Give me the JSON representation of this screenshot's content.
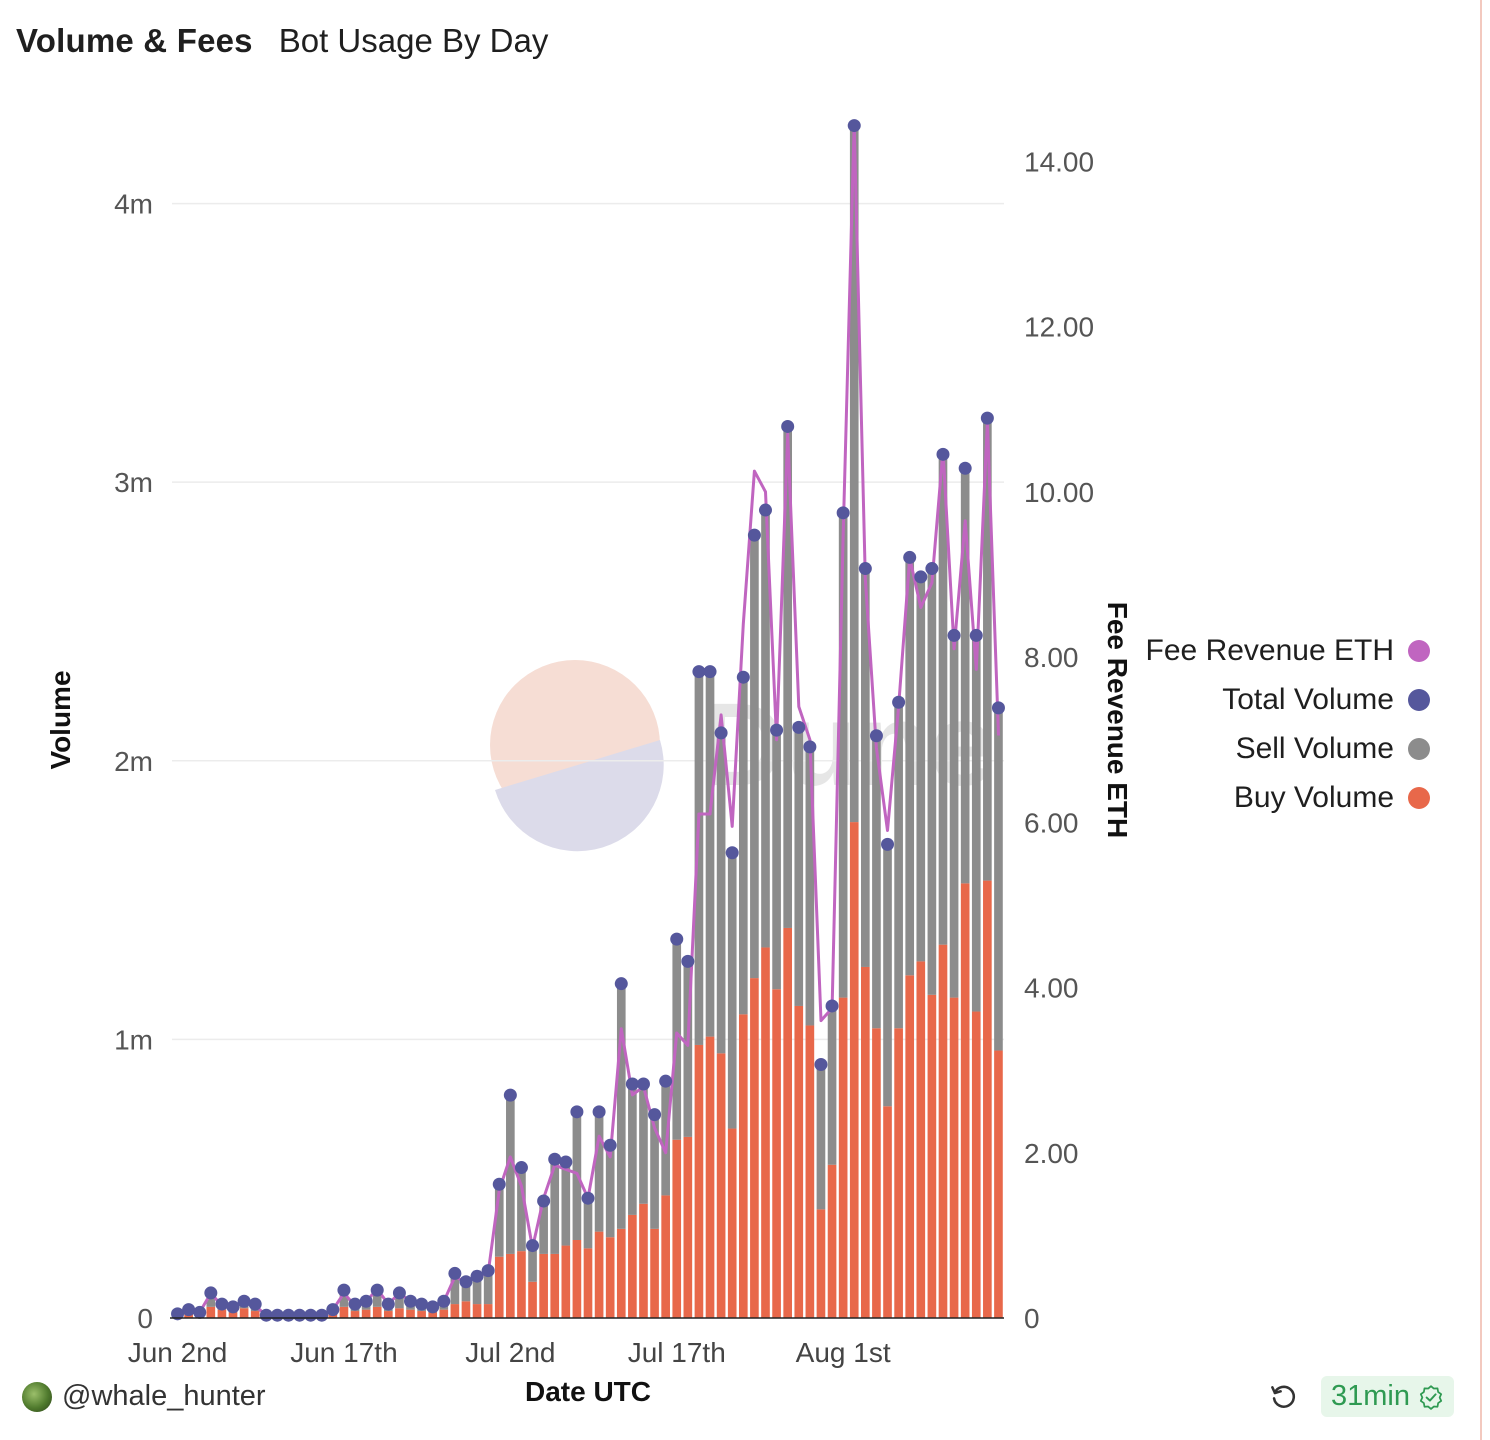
{
  "header": {
    "title": "Volume & Fees",
    "subtitle": "Bot Usage By Day"
  },
  "footer": {
    "user": "@whale_hunter",
    "refresh_time": "31min"
  },
  "colors": {
    "buy": "#e8684a",
    "sell": "#8c8c8c",
    "total": "#55579c",
    "fee": "#c065c0",
    "watermark": "Dune"
  },
  "chart_data": {
    "type": "bar",
    "stacked": true,
    "xlabel": "Date UTC",
    "ylabel": "Volume",
    "y2label": "Fee Revenue ETH",
    "x_ticks": [
      "Jun 2nd",
      "Jun 17th",
      "Jul 2nd",
      "Jul 17th",
      "Aug 1st"
    ],
    "x_tick_indices": [
      0,
      15,
      30,
      45,
      60
    ],
    "ylim": [
      0,
      4300000
    ],
    "y_ticks": [
      0,
      1000000,
      2000000,
      3000000,
      4000000
    ],
    "y_tick_labels": [
      "0",
      "1m",
      "2m",
      "3m",
      "4m"
    ],
    "y2lim": [
      0,
      14.5
    ],
    "y2_ticks": [
      0,
      2,
      4,
      6,
      8,
      10,
      12,
      14
    ],
    "y2_tick_labels": [
      "0",
      "2.00",
      "4.00",
      "6.00",
      "8.00",
      "10.00",
      "12.00",
      "14.00"
    ],
    "legend": {
      "position": "right",
      "entries": [
        "Fee Revenue ETH",
        "Total Volume",
        "Sell Volume",
        "Buy Volume"
      ]
    },
    "series": [
      {
        "name": "Buy Volume",
        "values": [
          10000,
          20000,
          15000,
          40000,
          30000,
          20000,
          35000,
          25000,
          5000,
          5000,
          5000,
          5000,
          5000,
          5000,
          20000,
          40000,
          25000,
          30000,
          40000,
          25000,
          35000,
          30000,
          25000,
          20000,
          30000,
          50000,
          60000,
          50000,
          50000,
          220000,
          230000,
          240000,
          130000,
          230000,
          230000,
          260000,
          280000,
          250000,
          310000,
          290000,
          320000,
          370000,
          410000,
          320000,
          440000,
          640000,
          650000,
          980000,
          1010000,
          950000,
          680000,
          1090000,
          1220000,
          1330000,
          1180000,
          1400000,
          1120000,
          1050000,
          390000,
          550000,
          1150000,
          1780000,
          1260000,
          1040000,
          760000,
          1040000,
          1230000,
          1280000,
          1160000,
          1340000,
          1150000,
          1560000,
          1100000,
          1570000,
          960000
        ]
      },
      {
        "name": "Sell Volume",
        "values": [
          5000,
          10000,
          5000,
          50000,
          20000,
          20000,
          25000,
          25000,
          5000,
          5000,
          5000,
          5000,
          5000,
          5000,
          10000,
          60000,
          25000,
          30000,
          60000,
          25000,
          55000,
          30000,
          25000,
          20000,
          30000,
          110000,
          70000,
          100000,
          120000,
          260000,
          570000,
          300000,
          130000,
          190000,
          340000,
          300000,
          460000,
          180000,
          430000,
          330000,
          880000,
          470000,
          430000,
          410000,
          410000,
          720000,
          630000,
          1340000,
          1310000,
          1150000,
          990000,
          1210000,
          1590000,
          1570000,
          930000,
          1800000,
          1000000,
          1000000,
          520000,
          570000,
          1740000,
          2500000,
          1430000,
          1050000,
          940000,
          1170000,
          1500000,
          1380000,
          1530000,
          1760000,
          1300000,
          1490000,
          1350000,
          1660000,
          1230000
        ]
      },
      {
        "name": "Total Volume",
        "values": [
          15000,
          30000,
          20000,
          90000,
          50000,
          40000,
          60000,
          50000,
          10000,
          10000,
          10000,
          10000,
          10000,
          10000,
          30000,
          100000,
          50000,
          60000,
          100000,
          50000,
          90000,
          60000,
          50000,
          40000,
          60000,
          160000,
          130000,
          150000,
          170000,
          480000,
          800000,
          540000,
          260000,
          420000,
          570000,
          560000,
          740000,
          430000,
          740000,
          620000,
          1200000,
          840000,
          840000,
          730000,
          850000,
          1360000,
          1280000,
          2320000,
          2320000,
          2100000,
          1670000,
          2300000,
          2810000,
          2900000,
          2110000,
          3200000,
          2120000,
          2050000,
          910000,
          1120000,
          2890000,
          4280000,
          2690000,
          2090000,
          1700000,
          2210000,
          2730000,
          2660000,
          2690000,
          3100000,
          2450000,
          3050000,
          2450000,
          3230000,
          2190000
        ]
      },
      {
        "name": "Fee Revenue ETH",
        "values": [
          0.05,
          0.1,
          0.07,
          0.3,
          0.15,
          0.12,
          0.2,
          0.15,
          0.03,
          0.03,
          0.03,
          0.03,
          0.03,
          0.03,
          0.1,
          0.3,
          0.15,
          0.2,
          0.35,
          0.17,
          0.3,
          0.2,
          0.17,
          0.13,
          0.2,
          0.5,
          0.43,
          0.5,
          0.55,
          1.55,
          1.95,
          1.6,
          0.85,
          1.45,
          1.85,
          1.8,
          1.75,
          1.45,
          2.2,
          1.95,
          3.5,
          2.7,
          2.8,
          2.3,
          2.0,
          3.45,
          3.3,
          6.1,
          6.1,
          7.3,
          5.95,
          8.4,
          10.25,
          10.0,
          7.0,
          10.7,
          7.4,
          7.0,
          3.6,
          3.75,
          9.45,
          14.45,
          8.95,
          6.9,
          5.9,
          7.4,
          9.2,
          8.6,
          8.9,
          10.5,
          8.1,
          9.65,
          7.85,
          10.85,
          7.05
        ]
      }
    ]
  }
}
